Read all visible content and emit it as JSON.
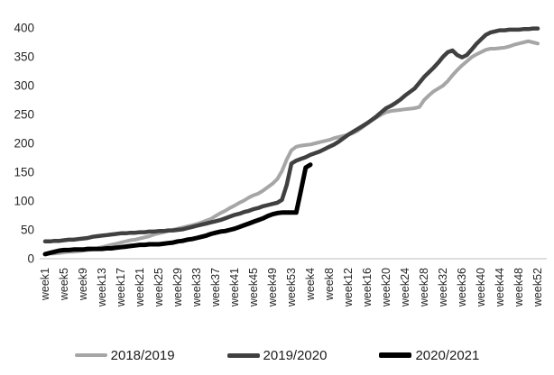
{
  "chart_data": {
    "type": "line",
    "title": "",
    "xlabel": "",
    "ylabel": "",
    "grid": false,
    "background_color": "#ffffff",
    "axis_line_color": "#c9c9c9",
    "tick_label_color": "#262626",
    "legend_position": "bottom",
    "x_axis": {
      "unit": "week",
      "total_points": 105,
      "tick_positions": [
        1,
        5,
        9,
        13,
        17,
        21,
        25,
        29,
        33,
        37,
        41,
        45,
        49,
        53,
        57,
        61,
        65,
        69,
        73,
        77,
        81,
        85,
        89,
        93,
        97,
        101,
        105
      ],
      "tick_labels": [
        "week1",
        "week5",
        "week9",
        "week13",
        "week17",
        "week21",
        "week25",
        "week29",
        "week33",
        "week37",
        "week41",
        "week45",
        "week49",
        "week53",
        "week4",
        "week8",
        "week12",
        "week16",
        "week20",
        "week24",
        "week28",
        "week32",
        "week36",
        "week40",
        "week44",
        "week48",
        "week52"
      ]
    },
    "y_axis": {
      "min": 0,
      "max": 400,
      "tick_step": 50,
      "tick_labels": [
        "0",
        "50",
        "100",
        "150",
        "200",
        "250",
        "300",
        "350",
        "400"
      ]
    },
    "series": [
      {
        "name": "2018/2019",
        "color": "#a6a6a6",
        "line_width": 4,
        "start_week_index": 1,
        "values": [
          8,
          9,
          9,
          10,
          11,
          12,
          12,
          13,
          14,
          15,
          16,
          18,
          20,
          22,
          24,
          26,
          28,
          30,
          32,
          33,
          35,
          37,
          39,
          42,
          44,
          46,
          48,
          50,
          52,
          54,
          56,
          58,
          60,
          63,
          66,
          69,
          74,
          79,
          83,
          88,
          92,
          97,
          101,
          106,
          110,
          113,
          118,
          124,
          130,
          138,
          152,
          172,
          188,
          194,
          196,
          197,
          198,
          200,
          202,
          204,
          206,
          209,
          211,
          213,
          215,
          218,
          222,
          228,
          234,
          240,
          245,
          250,
          254,
          256,
          257,
          258,
          259,
          260,
          261,
          263,
          275,
          283,
          290,
          295,
          300,
          308,
          318,
          327,
          335,
          342,
          349,
          354,
          358,
          362,
          364,
          364,
          365,
          366,
          368,
          371,
          373,
          375,
          377,
          375,
          373
        ]
      },
      {
        "name": "2019/2020",
        "color": "#404040",
        "line_width": 4.5,
        "start_week_index": 1,
        "values": [
          30,
          30,
          31,
          31,
          32,
          33,
          33,
          34,
          35,
          36,
          38,
          39,
          40,
          41,
          42,
          43,
          44,
          44,
          45,
          45,
          46,
          46,
          47,
          47,
          48,
          48,
          49,
          49,
          50,
          51,
          53,
          55,
          57,
          59,
          61,
          63,
          65,
          67,
          70,
          73,
          76,
          78,
          81,
          83,
          86,
          88,
          91,
          93,
          95,
          97,
          102,
          128,
          165,
          170,
          173,
          176,
          180,
          183,
          186,
          190,
          194,
          198,
          203,
          209,
          215,
          220,
          225,
          230,
          235,
          241,
          247,
          254,
          261,
          265,
          270,
          276,
          283,
          289,
          295,
          305,
          315,
          323,
          331,
          340,
          350,
          358,
          361,
          353,
          349,
          353,
          362,
          372,
          380,
          388,
          392,
          394,
          396,
          396,
          397,
          397,
          397,
          398,
          398,
          399,
          399
        ]
      },
      {
        "name": "2020/2021",
        "color": "#000000",
        "line_width": 5,
        "start_week_index": 1,
        "values": [
          8,
          10,
          12,
          14,
          15,
          15,
          16,
          16,
          16,
          17,
          17,
          17,
          17,
          18,
          18,
          19,
          20,
          21,
          22,
          23,
          24,
          24,
          25,
          25,
          25,
          26,
          27,
          28,
          30,
          31,
          33,
          34,
          36,
          38,
          40,
          43,
          45,
          47,
          48,
          50,
          52,
          55,
          58,
          61,
          64,
          67,
          70,
          74,
          77,
          79,
          80,
          80,
          80,
          80,
          118,
          158,
          163
        ]
      }
    ]
  },
  "legend": {
    "items": [
      {
        "label": "2018/2019"
      },
      {
        "label": "2019/2020"
      },
      {
        "label": "2020/2021"
      }
    ]
  }
}
